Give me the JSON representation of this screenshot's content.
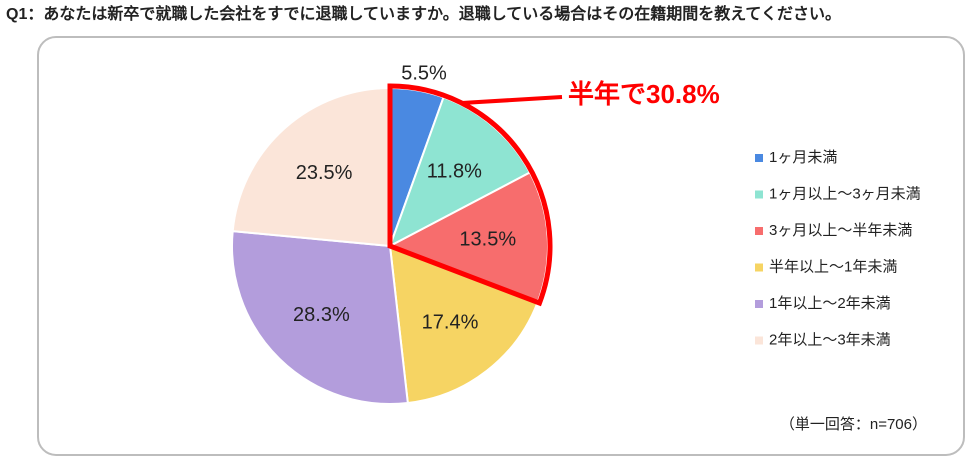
{
  "chart_data": {
    "type": "pie",
    "title": "Q1：あなたは新卒で就職した会社をすでに退職していますか。退職している場合はその在籍期間を教えてください。",
    "categories": [
      "1ヶ月未満",
      "1ヶ月以上～3ヶ月未満",
      "3ヶ月以上～半年未満",
      "半年以上～1年未満",
      "1年以上～2年未満",
      "2年以上～3年未満"
    ],
    "values": [
      5.5,
      11.8,
      13.5,
      17.4,
      28.3,
      23.5
    ],
    "value_labels": [
      "5.5%",
      "11.8%",
      "13.5%",
      "17.4%",
      "28.3%",
      "23.5%"
    ],
    "colors": [
      "#4a89e1",
      "#8ee4d2",
      "#f76d6d",
      "#f6d463",
      "#b39ddc",
      "#fbe5d9"
    ],
    "annotation": "半年で30.8%",
    "note": "（単一回答：n=706）",
    "legend": "right"
  }
}
